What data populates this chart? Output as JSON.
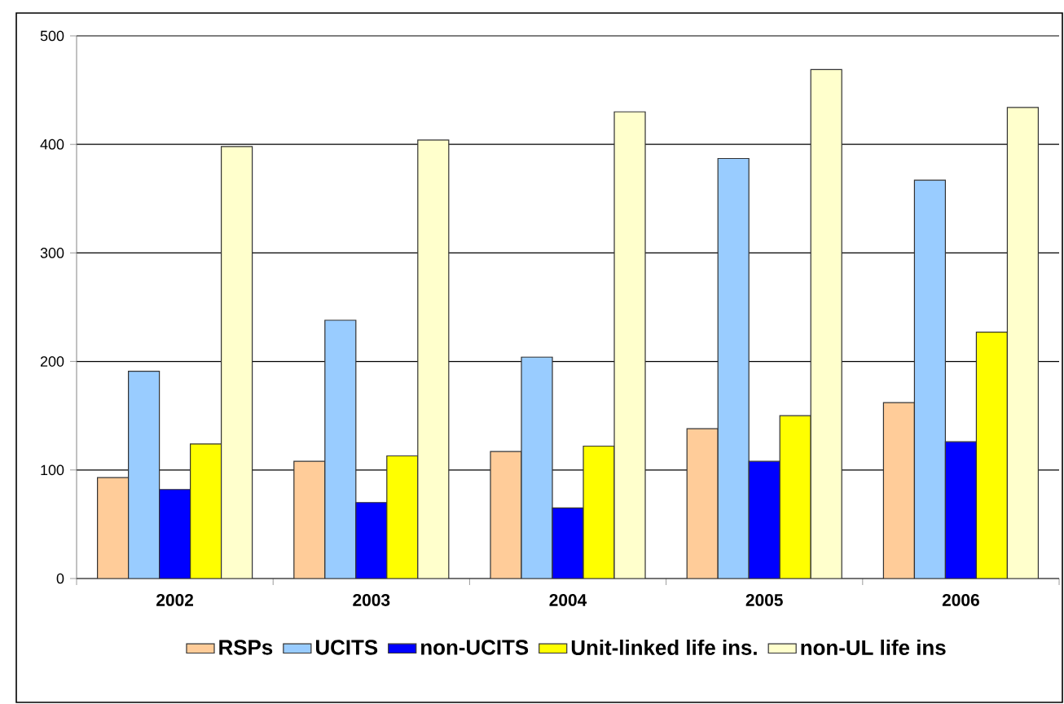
{
  "chart_data": {
    "type": "bar",
    "categories": [
      "2002",
      "2003",
      "2004",
      "2005",
      "2006"
    ],
    "series": [
      {
        "name": "RSPs",
        "color": "#ffcc99",
        "values": [
          93,
          108,
          117,
          138,
          162
        ]
      },
      {
        "name": "UCITS",
        "color": "#99ccff",
        "values": [
          191,
          238,
          204,
          387,
          367
        ]
      },
      {
        "name": "non-UCITS",
        "color": "#0000ff",
        "values": [
          82,
          70,
          65,
          108,
          126
        ]
      },
      {
        "name": "Unit-linked life ins.",
        "color": "#ffff00",
        "values": [
          124,
          113,
          122,
          150,
          227
        ]
      },
      {
        "name": "non-UL life ins",
        "color": "#ffffcc",
        "values": [
          398,
          404,
          430,
          469,
          434
        ]
      }
    ],
    "ylim": [
      0,
      500
    ],
    "yticks": [
      0,
      100,
      200,
      300,
      400,
      500
    ],
    "grid": "y",
    "legend": "bottom"
  }
}
